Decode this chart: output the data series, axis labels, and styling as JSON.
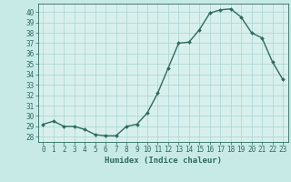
{
  "x": [
    0,
    1,
    2,
    3,
    4,
    5,
    6,
    7,
    8,
    9,
    10,
    11,
    12,
    13,
    14,
    15,
    16,
    17,
    18,
    19,
    20,
    21,
    22,
    23
  ],
  "y": [
    29.2,
    29.5,
    29.0,
    29.0,
    28.7,
    28.2,
    28.1,
    28.1,
    29.0,
    29.2,
    30.3,
    32.2,
    34.6,
    37.0,
    37.1,
    38.3,
    39.9,
    40.2,
    40.3,
    39.5,
    38.0,
    37.5,
    35.2,
    33.5
  ],
  "line_color": "#2e6b5e",
  "marker": "D",
  "markersize": 2.0,
  "linewidth": 1.0,
  "bg_color": "#c8eae6",
  "plot_bg_color": "#d8f0ed",
  "grid_color": "#b0d8d4",
  "xlabel": "Humidex (Indice chaleur)",
  "xlim": [
    -0.5,
    23.5
  ],
  "ylim": [
    27.5,
    40.8
  ],
  "yticks": [
    28,
    29,
    30,
    31,
    32,
    33,
    34,
    35,
    36,
    37,
    38,
    39,
    40
  ],
  "xticks": [
    0,
    1,
    2,
    3,
    4,
    5,
    6,
    7,
    8,
    9,
    10,
    11,
    12,
    13,
    14,
    15,
    16,
    17,
    18,
    19,
    20,
    21,
    22,
    23
  ],
  "tick_fontsize": 5.5,
  "label_fontsize": 6.5
}
